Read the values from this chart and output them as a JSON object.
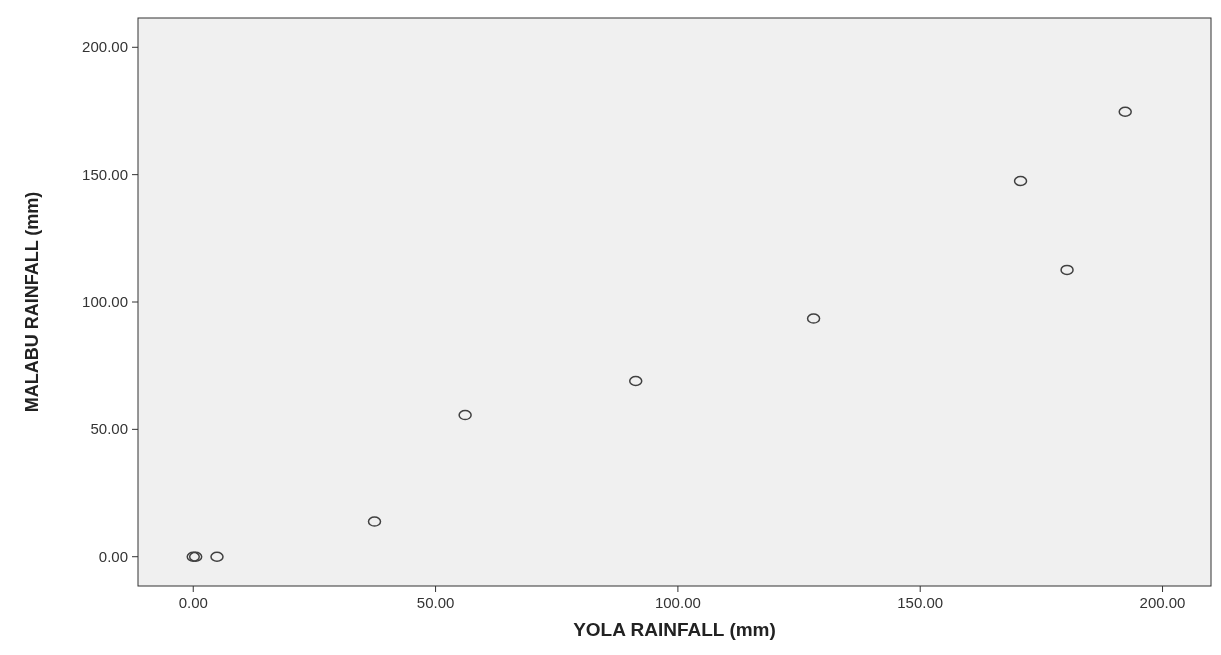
{
  "chart_data": {
    "type": "scatter",
    "xlabel": "YOLA RAINFALL (mm)",
    "ylabel": "MALABU RAINFALL (mm)",
    "x": [
      0,
      0.5,
      4.9,
      37.4,
      56.1,
      91.3,
      128,
      170.7,
      180.3,
      192.3
    ],
    "series": [
      {
        "color": "#404040",
        "values": [
          0,
          0,
          0,
          13.8,
          55.6,
          69,
          93.5,
          147.5,
          112.6,
          174.7
        ]
      }
    ],
    "xlim": [
      -11.4,
      210
    ],
    "ylim": [
      -11.5,
      211.5
    ],
    "xticks": [
      {
        "value": 0,
        "label": "0.00"
      },
      {
        "value": 50,
        "label": "50.00"
      },
      {
        "value": 100,
        "label": "100.00"
      },
      {
        "value": 150,
        "label": "150.00"
      },
      {
        "value": 200,
        "label": "200.00"
      }
    ],
    "yticks": [
      {
        "value": 0,
        "label": "0.00"
      },
      {
        "value": 50,
        "label": "50.00"
      },
      {
        "value": 100,
        "label": "100.00"
      },
      {
        "value": 150,
        "label": "150.00"
      },
      {
        "value": 200,
        "label": "200.00"
      }
    ],
    "marker": "circle",
    "grid": false
  }
}
